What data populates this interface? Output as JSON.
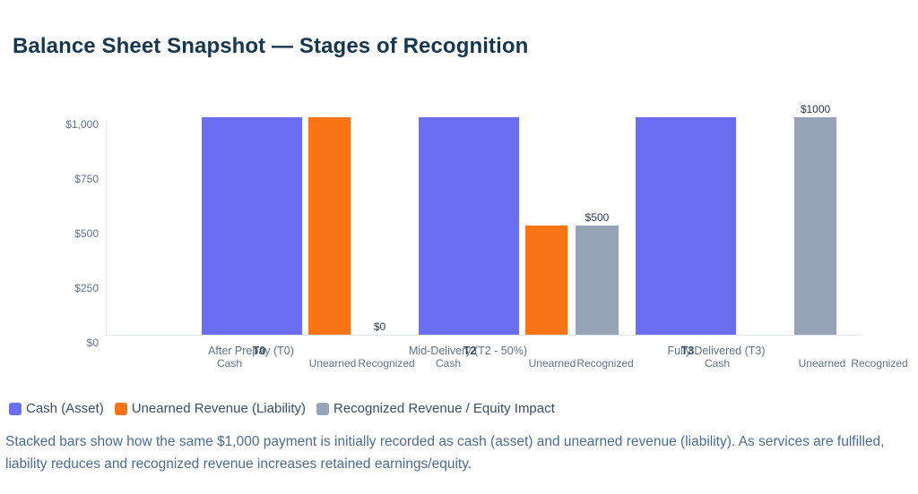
{
  "title": "Balance Sheet Snapshot — Stages of Recognition",
  "caption": "Stacked bars show how the same $1,000 payment is initially recorded as cash (asset) and unearned revenue (liability). As services are fulfilled, liability reduces and recognized revenue increases retained earnings/equity.",
  "colors": {
    "cash": "#6b6ef0",
    "unearned": "#f97416",
    "recognized": "#97a4b7",
    "axis_line": "#e3e7ee",
    "tick_text": "#5f7189",
    "title_text": "#16374f"
  },
  "legend": [
    {
      "label": "Cash (Asset)",
      "color_key": "cash"
    },
    {
      "label": "Unearned Revenue (Liability)",
      "color_key": "unearned"
    },
    {
      "label": "Recognized Revenue / Equity Impact",
      "color_key": "recognized"
    }
  ],
  "chart_data": {
    "type": "bar",
    "title": "Balance Sheet Snapshot — Stages of Recognition",
    "xlabel": "",
    "ylabel": "",
    "ylim": [
      0,
      1000
    ],
    "grid": false,
    "legend_position": "bottom",
    "y_ticks": [
      {
        "label": "$1,000",
        "value": 1000
      },
      {
        "label": "$750",
        "value": 750
      },
      {
        "label": "$500",
        "value": 500
      },
      {
        "label": "$250",
        "value": 250
      },
      {
        "label": "$0",
        "value": 0
      }
    ],
    "series_names": [
      "Cash (Asset)",
      "Unearned Revenue (Liability)",
      "Recognized Revenue / Equity Impact"
    ],
    "groups": [
      {
        "stage": "After Prepay (T0)",
        "tag": "T0",
        "bars": [
          {
            "label": "Cash",
            "series": "cash",
            "value": 1000,
            "data_label": null
          },
          {
            "label": "Unearned",
            "series": "unearned",
            "value": 1000,
            "data_label": null
          },
          {
            "label": "Recognized",
            "series": "recognized",
            "value": 0,
            "data_label": "$0"
          }
        ]
      },
      {
        "stage": "Mid-Delivery (T2 - 50%)",
        "tag": "T2",
        "bars": [
          {
            "label": "Cash",
            "series": "cash",
            "value": 1000,
            "data_label": null
          },
          {
            "label": "Unearned",
            "series": "unearned",
            "value": 500,
            "data_label": null
          },
          {
            "label": "Recognized",
            "series": "recognized",
            "value": 500,
            "data_label": "$500"
          }
        ]
      },
      {
        "stage": "Fully Delivered (T3)",
        "tag": "T3",
        "bars": [
          {
            "label": "Cash",
            "series": "cash",
            "value": 1000,
            "data_label": null
          },
          {
            "label": "Unearned",
            "series": "unearned",
            "value": 0,
            "data_label": null
          },
          {
            "label": "Recognized",
            "series": "recognized",
            "value": 1000,
            "data_label": "$1000"
          }
        ]
      }
    ]
  }
}
